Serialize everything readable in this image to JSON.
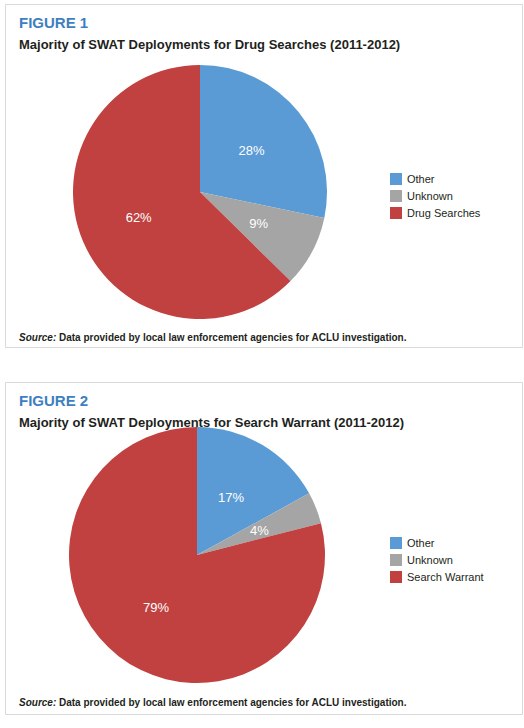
{
  "chart_data": [
    {
      "type": "pie",
      "figure": "FIGURE 1",
      "title": "Majority of SWAT Deployments for Drug Searches (2011-2012)",
      "categories": [
        "Other",
        "Unknown",
        "Drug Searches"
      ],
      "values": [
        28,
        9,
        62
      ],
      "value_labels": [
        "28%",
        "9%",
        "62%"
      ],
      "colors": [
        "#5b9bd5",
        "#a5a5a5",
        "#c0413f"
      ],
      "data_labels": true,
      "legend": "right",
      "source": {
        "label": "Source:",
        "text": "Data provided by local law enforcement agencies for ACLU investigation."
      }
    },
    {
      "type": "pie",
      "figure": "FIGURE 2",
      "title": "Majority of SWAT Deployments for Search Warrant (2011-2012)",
      "categories": [
        "Other",
        "Unknown",
        "Search Warrant"
      ],
      "values": [
        17,
        4,
        79
      ],
      "value_labels": [
        "17%",
        "4%",
        "79%"
      ],
      "colors": [
        "#5b9bd5",
        "#a5a5a5",
        "#c0413f"
      ],
      "data_labels": true,
      "legend": "right",
      "source": {
        "label": "Source:",
        "text": "Data provided by local law enforcement agencies for ACLU investigation."
      }
    }
  ]
}
